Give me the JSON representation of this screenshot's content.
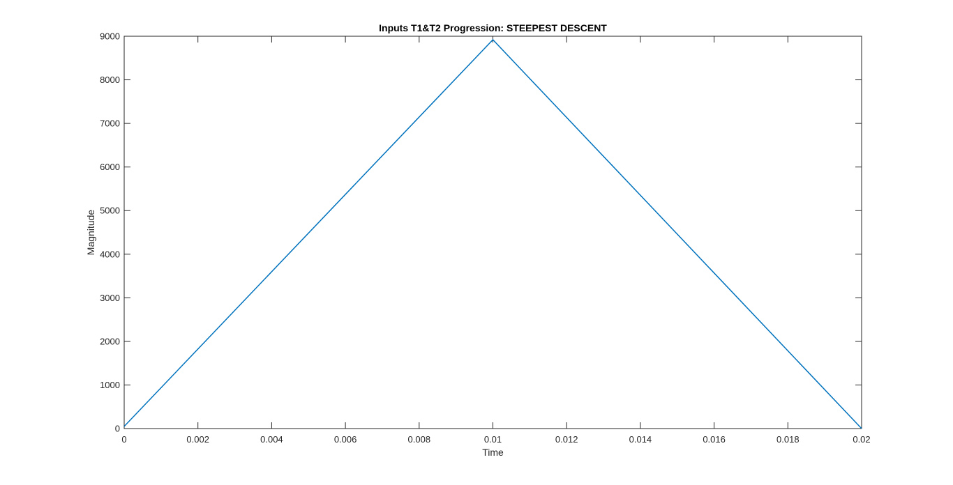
{
  "chart_data": {
    "type": "line",
    "title": "Inputs T1&T2 Progression: STEEPEST DESCENT",
    "xlabel": "Time",
    "ylabel": "Magnitude",
    "xlim": [
      0,
      0.02
    ],
    "ylim": [
      0,
      9000
    ],
    "x_ticks": [
      0,
      0.002,
      0.004,
      0.006,
      0.008,
      0.01,
      0.012,
      0.014,
      0.016,
      0.018,
      0.02
    ],
    "x_tick_labels": [
      "0",
      "0.002",
      "0.004",
      "0.006",
      "0.008",
      "0.01",
      "0.012",
      "0.014",
      "0.016",
      "0.018",
      "0.02"
    ],
    "y_ticks": [
      0,
      1000,
      2000,
      3000,
      4000,
      5000,
      6000,
      7000,
      8000,
      9000
    ],
    "y_tick_labels": [
      "0",
      "1000",
      "2000",
      "3000",
      "4000",
      "5000",
      "6000",
      "7000",
      "8000",
      "9000"
    ],
    "grid": false,
    "box": true,
    "series": [
      {
        "color": "#0072BD",
        "x": [
          0,
          0.01,
          0.02
        ],
        "y": [
          50,
          8920,
          0
        ]
      }
    ]
  }
}
